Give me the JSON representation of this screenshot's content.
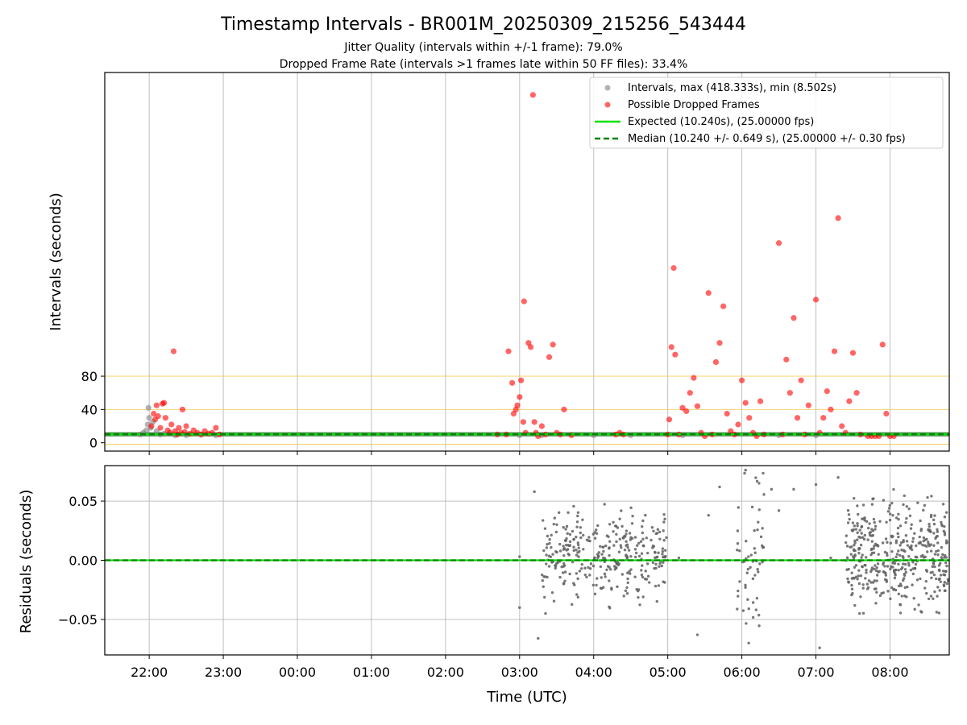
{
  "title": "Timestamp Intervals - BR001M_20250309_215256_543444",
  "subtitle_1": "Jitter Quality (intervals within +/-1 frame): 79.0%",
  "subtitle_2": "Dropped Frame Rate (intervals >1 frames late within 50 FF files): 33.4%",
  "chart_data": [
    {
      "type": "scatter",
      "panel": "top",
      "ylabel": "Intervals (seconds)",
      "xlim_hours": [
        21.4,
        32.8
      ],
      "ylim": [
        -10,
        445
      ],
      "yticks": [
        "0",
        "40",
        "80"
      ],
      "ytick_values": [
        0,
        40,
        80
      ],
      "hlines_gold": [
        -1.76,
        40,
        80
      ],
      "xgrid_hours": [
        22,
        23,
        24,
        25,
        26,
        27,
        28,
        29,
        30,
        31,
        32
      ],
      "legend_position": "upper right",
      "legend": [
        {
          "label": "Intervals, max (418.333s), min (8.502s)",
          "kind": "marker",
          "color": "#808080"
        },
        {
          "label": "Possible Dropped Frames",
          "kind": "marker",
          "color": "#ff0000"
        },
        {
          "label": "Expected (10.240s), (25.00000 fps)",
          "kind": "line",
          "color": "#00e000"
        },
        {
          "label": "Median (10.240 +/- 0.649 s), (25.00000 +/- 0.30 fps)",
          "kind": "dashed",
          "color": "#008000"
        }
      ],
      "expected_interval": 10.24,
      "median_interval": 10.24,
      "median_band": 0.649,
      "gray_points": [
        [
          21.88,
          10
        ],
        [
          21.92,
          12
        ],
        [
          21.96,
          15
        ],
        [
          21.98,
          22
        ],
        [
          22.0,
          30
        ],
        [
          21.99,
          42
        ],
        [
          22.02,
          18
        ],
        [
          22.05,
          25
        ],
        [
          22.1,
          14
        ],
        [
          22.15,
          10
        ],
        [
          22.2,
          11
        ],
        [
          22.35,
          9
        ],
        [
          22.5,
          9
        ],
        [
          22.7,
          10
        ],
        [
          22.9,
          9
        ],
        [
          27.0,
          9
        ],
        [
          27.3,
          9
        ],
        [
          28.0,
          9
        ],
        [
          28.5,
          9
        ],
        [
          29.2,
          9
        ],
        [
          30.5,
          9
        ],
        [
          31.0,
          9
        ]
      ],
      "red_points": [
        [
          22.03,
          20
        ],
        [
          22.06,
          35
        ],
        [
          22.08,
          28
        ],
        [
          22.1,
          45
        ],
        [
          22.12,
          32
        ],
        [
          22.15,
          18
        ],
        [
          22.18,
          47
        ],
        [
          22.2,
          48
        ],
        [
          22.22,
          30
        ],
        [
          22.25,
          15
        ],
        [
          22.28,
          12
        ],
        [
          22.3,
          22
        ],
        [
          22.33,
          110
        ],
        [
          22.35,
          14
        ],
        [
          22.38,
          10
        ],
        [
          22.4,
          18
        ],
        [
          22.43,
          12
        ],
        [
          22.45,
          40
        ],
        [
          22.48,
          13
        ],
        [
          22.5,
          20
        ],
        [
          22.55,
          11
        ],
        [
          22.6,
          15
        ],
        [
          22.65,
          12
        ],
        [
          22.7,
          10
        ],
        [
          22.75,
          14
        ],
        [
          22.8,
          11
        ],
        [
          22.85,
          12
        ],
        [
          22.9,
          18
        ],
        [
          22.95,
          10
        ],
        [
          26.7,
          10
        ],
        [
          26.82,
          10
        ],
        [
          26.85,
          110
        ],
        [
          26.9,
          72
        ],
        [
          26.92,
          35
        ],
        [
          26.95,
          40
        ],
        [
          26.97,
          45
        ],
        [
          27.0,
          55
        ],
        [
          27.02,
          75
        ],
        [
          27.05,
          25
        ],
        [
          27.08,
          12
        ],
        [
          27.12,
          120
        ],
        [
          27.15,
          115
        ],
        [
          27.2,
          25
        ],
        [
          27.22,
          12
        ],
        [
          27.25,
          8
        ],
        [
          27.3,
          20
        ],
        [
          27.35,
          10
        ],
        [
          27.4,
          103
        ],
        [
          27.45,
          118
        ],
        [
          27.5,
          12
        ],
        [
          27.55,
          10
        ],
        [
          27.6,
          40
        ],
        [
          27.7,
          9
        ],
        [
          27.06,
          170
        ],
        [
          27.18,
          418
        ],
        [
          28.3,
          10
        ],
        [
          28.35,
          12
        ],
        [
          28.4,
          10
        ],
        [
          29.0,
          10
        ],
        [
          29.02,
          28
        ],
        [
          29.05,
          115
        ],
        [
          29.08,
          210
        ],
        [
          29.1,
          106
        ],
        [
          29.15,
          10
        ],
        [
          29.2,
          42
        ],
        [
          29.25,
          38
        ],
        [
          29.3,
          60
        ],
        [
          29.35,
          78
        ],
        [
          29.4,
          44
        ],
        [
          29.45,
          12
        ],
        [
          29.5,
          8
        ],
        [
          29.55,
          180
        ],
        [
          29.6,
          10
        ],
        [
          29.65,
          97
        ],
        [
          29.7,
          120
        ],
        [
          29.75,
          164
        ],
        [
          29.8,
          35
        ],
        [
          29.85,
          14
        ],
        [
          29.9,
          10
        ],
        [
          29.95,
          22
        ],
        [
          30.0,
          75
        ],
        [
          30.05,
          48
        ],
        [
          30.1,
          30
        ],
        [
          30.15,
          12
        ],
        [
          30.2,
          8
        ],
        [
          30.25,
          50
        ],
        [
          30.3,
          10
        ],
        [
          30.5,
          240
        ],
        [
          30.55,
          10
        ],
        [
          30.6,
          100
        ],
        [
          30.65,
          60
        ],
        [
          30.7,
          150
        ],
        [
          30.75,
          30
        ],
        [
          30.8,
          75
        ],
        [
          30.85,
          10
        ],
        [
          30.9,
          45
        ],
        [
          31.0,
          172
        ],
        [
          31.05,
          12
        ],
        [
          31.1,
          30
        ],
        [
          31.15,
          62
        ],
        [
          31.2,
          40
        ],
        [
          31.25,
          110
        ],
        [
          31.3,
          270
        ],
        [
          31.35,
          20
        ],
        [
          31.4,
          12
        ],
        [
          31.45,
          50
        ],
        [
          31.5,
          108
        ],
        [
          31.55,
          60
        ],
        [
          31.6,
          10
        ],
        [
          31.7,
          8
        ],
        [
          31.75,
          8
        ],
        [
          31.8,
          8
        ],
        [
          31.85,
          8
        ],
        [
          31.9,
          118
        ],
        [
          31.95,
          35
        ],
        [
          32.0,
          8
        ],
        [
          32.05,
          8
        ]
      ]
    },
    {
      "type": "scatter",
      "panel": "bottom",
      "ylabel": "Residuals (seconds)",
      "xlabel": "Time (UTC)",
      "ylim": [
        -0.08,
        0.08
      ],
      "yticks": [
        "0.05",
        "0.00",
        "−0.05"
      ],
      "ytick_values": [
        0.05,
        0.0,
        -0.05
      ],
      "xticks": [
        "22:00",
        "23:00",
        "00:00",
        "01:00",
        "02:00",
        "03:00",
        "04:00",
        "05:00",
        "06:00",
        "07:00",
        "08:00"
      ],
      "xtick_hours": [
        22,
        23,
        24,
        25,
        26,
        27,
        28,
        29,
        30,
        31,
        32
      ],
      "residual_clusters": [
        {
          "x0": 27.3,
          "x1": 29.0,
          "spread": 0.032,
          "center": 0.005,
          "n": 320
        },
        {
          "x0": 29.9,
          "x1": 30.3,
          "spread": 0.07,
          "center": 0.0,
          "n": 60
        },
        {
          "x0": 31.4,
          "x1": 32.8,
          "spread": 0.04,
          "center": 0.003,
          "n": 420
        }
      ],
      "isolated_residuals": [
        [
          27.0,
          0.003
        ],
        [
          27.0,
          -0.04
        ],
        [
          27.25,
          -0.066
        ],
        [
          27.35,
          -0.045
        ],
        [
          27.2,
          0.058
        ],
        [
          29.15,
          0.002
        ],
        [
          29.4,
          -0.063
        ],
        [
          29.55,
          0.038
        ],
        [
          29.7,
          0.062
        ],
        [
          30.4,
          0.06
        ],
        [
          30.5,
          0.042
        ],
        [
          30.7,
          0.06
        ],
        [
          31.0,
          0.064
        ],
        [
          31.05,
          -0.074
        ],
        [
          31.2,
          0.002
        ],
        [
          31.3,
          0.07
        ]
      ]
    }
  ]
}
